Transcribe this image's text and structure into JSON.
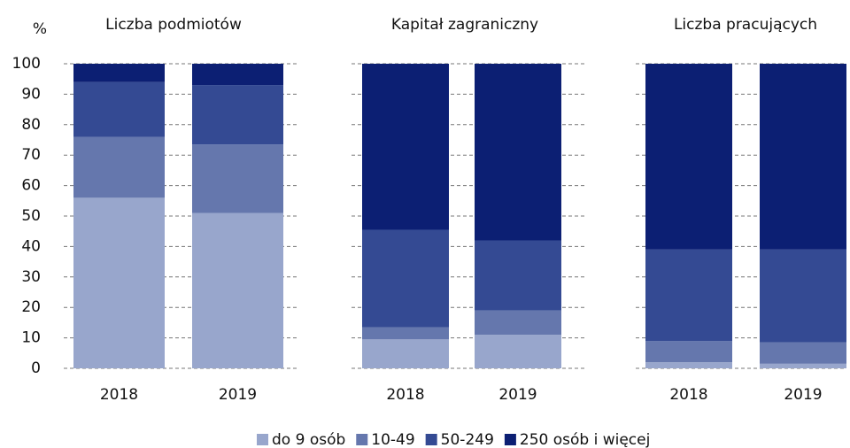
{
  "chart_data": {
    "type": "bar",
    "stacked": true,
    "ylabel": "%",
    "ylim": [
      0,
      100
    ],
    "yticks": [
      0,
      10,
      20,
      30,
      40,
      50,
      60,
      70,
      80,
      90,
      100
    ],
    "grid": true,
    "series": [
      {
        "name": "do 9 osób",
        "color": "#98a6cc"
      },
      {
        "name": "10-49",
        "color": "#6577ad"
      },
      {
        "name": "50-249",
        "color": "#344a93"
      },
      {
        "name": "250 osób i więcej",
        "color": "#0c1f73"
      }
    ],
    "panels": [
      {
        "title": "Liczba podmiotów",
        "categories": [
          "2018",
          "2019"
        ],
        "series": [
          {
            "values": [
              56,
              51
            ]
          },
          {
            "values": [
              20,
              22.5
            ]
          },
          {
            "values": [
              18,
              19.5
            ]
          },
          {
            "values": [
              6,
              7
            ]
          }
        ]
      },
      {
        "title": "Kapitał zagraniczny",
        "categories": [
          "2018",
          "2019"
        ],
        "series": [
          {
            "values": [
              9.5,
              11
            ]
          },
          {
            "values": [
              4,
              8
            ]
          },
          {
            "values": [
              32,
              23
            ]
          },
          {
            "values": [
              54.5,
              58
            ]
          }
        ]
      },
      {
        "title": "Liczba pracujących",
        "categories": [
          "2018",
          "2019"
        ],
        "series": [
          {
            "values": [
              2,
              1.5
            ]
          },
          {
            "values": [
              7,
              7
            ]
          },
          {
            "values": [
              30,
              30.5
            ]
          },
          {
            "values": [
              61,
              61
            ]
          }
        ]
      }
    ]
  }
}
